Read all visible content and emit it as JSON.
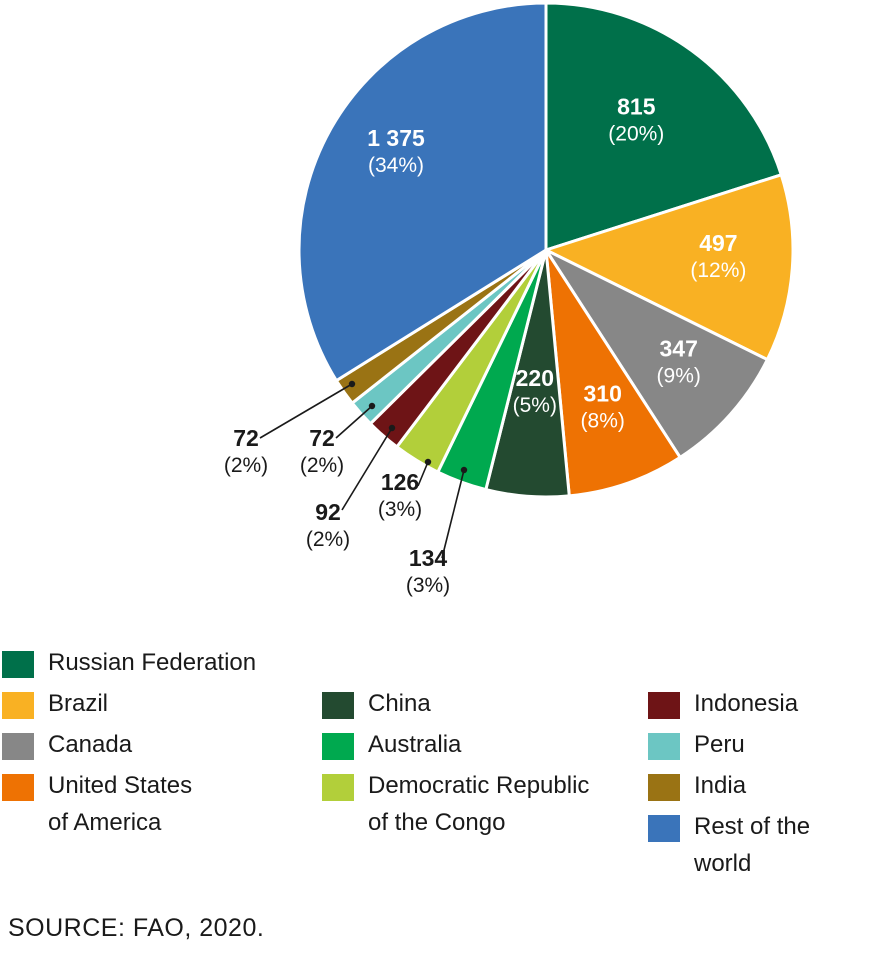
{
  "chart_data": {
    "type": "pie",
    "title": "",
    "slices": [
      {
        "name": "Russian Federation",
        "value": 815,
        "percent": "(20%)",
        "color": "#00704a",
        "label_color": "#ffffff"
      },
      {
        "name": "Brazil",
        "value": 497,
        "percent": "(12%)",
        "color": "#f9b123",
        "label_color": "#ffffff"
      },
      {
        "name": "Canada",
        "value": 347,
        "percent": "(9%)",
        "color": "#878787",
        "label_color": "#ffffff"
      },
      {
        "name": "United States\nof America",
        "value": 310,
        "percent": "(8%)",
        "color": "#ee7203",
        "label_color": "#ffffff"
      },
      {
        "name": "China",
        "value": 220,
        "percent": "(5%)",
        "color": "#234a30",
        "label_color": "#ffffff"
      },
      {
        "name": "Australia",
        "value": 134,
        "percent": "(3%)",
        "color": "#00a94f",
        "label_color": "#1a1a1a"
      },
      {
        "name": "Democratic Republic\nof the Congo",
        "value": 126,
        "percent": "(3%)",
        "color": "#b2cf3a",
        "label_color": "#1a1a1a"
      },
      {
        "name": "Indonesia",
        "value": 92,
        "percent": "(2%)",
        "color": "#6e1416",
        "label_color": "#1a1a1a"
      },
      {
        "name": "Peru",
        "value": 72,
        "percent": "(2%)",
        "color": "#6cc6c3",
        "label_color": "#1a1a1a"
      },
      {
        "name": "India",
        "value": 72,
        "percent": "(2%)",
        "color": "#9a7314",
        "label_color": "#1a1a1a"
      },
      {
        "name": "Rest of the world",
        "value": 1375,
        "percent": "(34%)",
        "color": "#3a74ba",
        "label_color": "#ffffff"
      }
    ],
    "legend_placement": "bottom"
  },
  "legend_order": [
    0,
    1,
    2,
    3,
    4,
    5,
    6,
    7,
    8,
    9,
    10
  ],
  "source": "SOURCE: FAO, 2020."
}
